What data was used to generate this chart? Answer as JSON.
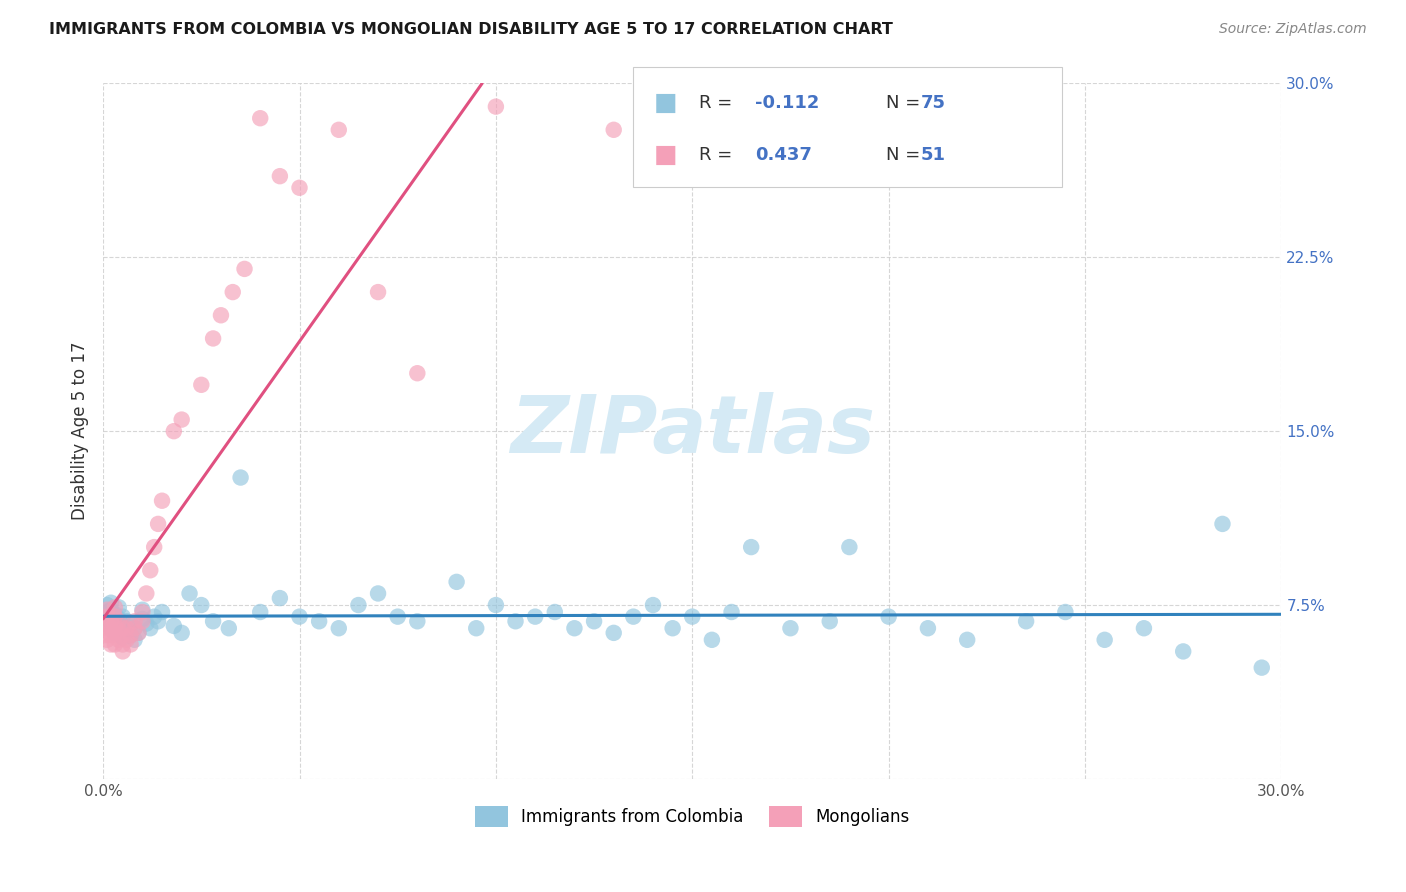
{
  "title": "IMMIGRANTS FROM COLOMBIA VS MONGOLIAN DISABILITY AGE 5 TO 17 CORRELATION CHART",
  "source": "Source: ZipAtlas.com",
  "ylabel": "Disability Age 5 to 17",
  "xlim": [
    0.0,
    0.3
  ],
  "ylim": [
    0.0,
    0.3
  ],
  "xticks": [
    0.0,
    0.05,
    0.1,
    0.15,
    0.2,
    0.25,
    0.3
  ],
  "yticks": [
    0.0,
    0.075,
    0.15,
    0.225,
    0.3
  ],
  "xticklabels": [
    "0.0%",
    "",
    "",
    "",
    "",
    "",
    "30.0%"
  ],
  "yticklabels_right": [
    "",
    "7.5%",
    "15.0%",
    "22.5%",
    "30.0%"
  ],
  "legend_r_label1": "R = ",
  "legend_r_val1": "-0.112",
  "legend_n_label1": "N = ",
  "legend_n_val1": "75",
  "legend_r_label2": "R = ",
  "legend_r_val2": "0.437",
  "legend_n_label2": "N = ",
  "legend_n_val2": "51",
  "legend_label1": "Immigrants from Colombia",
  "legend_label2": "Mongolians",
  "blue_scatter_color": "#92c5de",
  "pink_scatter_color": "#f4a0b8",
  "blue_line_color": "#3182bd",
  "pink_line_color": "#e05080",
  "right_axis_color": "#4472c4",
  "legend_text_dark": "#333333",
  "legend_text_blue": "#4472c4",
  "watermark_text": "ZIPatlas",
  "watermark_color": "#d5eaf5",
  "blue_x": [
    0.001,
    0.001,
    0.001,
    0.002,
    0.002,
    0.002,
    0.002,
    0.003,
    0.003,
    0.003,
    0.004,
    0.004,
    0.004,
    0.005,
    0.005,
    0.005,
    0.006,
    0.006,
    0.007,
    0.007,
    0.008,
    0.008,
    0.009,
    0.01,
    0.01,
    0.011,
    0.012,
    0.013,
    0.014,
    0.015,
    0.018,
    0.02,
    0.022,
    0.025,
    0.028,
    0.032,
    0.035,
    0.04,
    0.045,
    0.05,
    0.055,
    0.06,
    0.065,
    0.07,
    0.075,
    0.08,
    0.09,
    0.095,
    0.1,
    0.105,
    0.11,
    0.115,
    0.12,
    0.125,
    0.13,
    0.135,
    0.14,
    0.145,
    0.15,
    0.155,
    0.16,
    0.165,
    0.175,
    0.185,
    0.19,
    0.2,
    0.21,
    0.22,
    0.235,
    0.245,
    0.255,
    0.265,
    0.275,
    0.285,
    0.295
  ],
  "blue_y": [
    0.068,
    0.072,
    0.075,
    0.065,
    0.07,
    0.073,
    0.076,
    0.063,
    0.067,
    0.071,
    0.064,
    0.069,
    0.074,
    0.061,
    0.066,
    0.07,
    0.064,
    0.068,
    0.062,
    0.067,
    0.06,
    0.065,
    0.063,
    0.069,
    0.073,
    0.067,
    0.065,
    0.07,
    0.068,
    0.072,
    0.066,
    0.063,
    0.08,
    0.075,
    0.068,
    0.065,
    0.13,
    0.072,
    0.078,
    0.07,
    0.068,
    0.065,
    0.075,
    0.08,
    0.07,
    0.068,
    0.085,
    0.065,
    0.075,
    0.068,
    0.07,
    0.072,
    0.065,
    0.068,
    0.063,
    0.07,
    0.075,
    0.065,
    0.07,
    0.06,
    0.072,
    0.1,
    0.065,
    0.068,
    0.1,
    0.07,
    0.065,
    0.06,
    0.068,
    0.072,
    0.06,
    0.065,
    0.055,
    0.11,
    0.048
  ],
  "pink_x": [
    0.001,
    0.001,
    0.001,
    0.001,
    0.001,
    0.001,
    0.002,
    0.002,
    0.002,
    0.002,
    0.003,
    0.003,
    0.003,
    0.003,
    0.003,
    0.004,
    0.004,
    0.004,
    0.005,
    0.005,
    0.005,
    0.005,
    0.006,
    0.006,
    0.007,
    0.007,
    0.008,
    0.008,
    0.009,
    0.01,
    0.01,
    0.011,
    0.012,
    0.013,
    0.014,
    0.015,
    0.018,
    0.02,
    0.025,
    0.028,
    0.03,
    0.033,
    0.036,
    0.04,
    0.045,
    0.05,
    0.06,
    0.07,
    0.08,
    0.1,
    0.13
  ],
  "pink_y": [
    0.06,
    0.062,
    0.065,
    0.067,
    0.07,
    0.073,
    0.058,
    0.062,
    0.065,
    0.068,
    0.058,
    0.063,
    0.066,
    0.07,
    0.074,
    0.06,
    0.064,
    0.068,
    0.055,
    0.058,
    0.062,
    0.065,
    0.06,
    0.065,
    0.058,
    0.062,
    0.065,
    0.068,
    0.063,
    0.068,
    0.072,
    0.08,
    0.09,
    0.1,
    0.11,
    0.12,
    0.15,
    0.155,
    0.17,
    0.19,
    0.2,
    0.21,
    0.22,
    0.285,
    0.26,
    0.255,
    0.28,
    0.21,
    0.175,
    0.29,
    0.28
  ]
}
